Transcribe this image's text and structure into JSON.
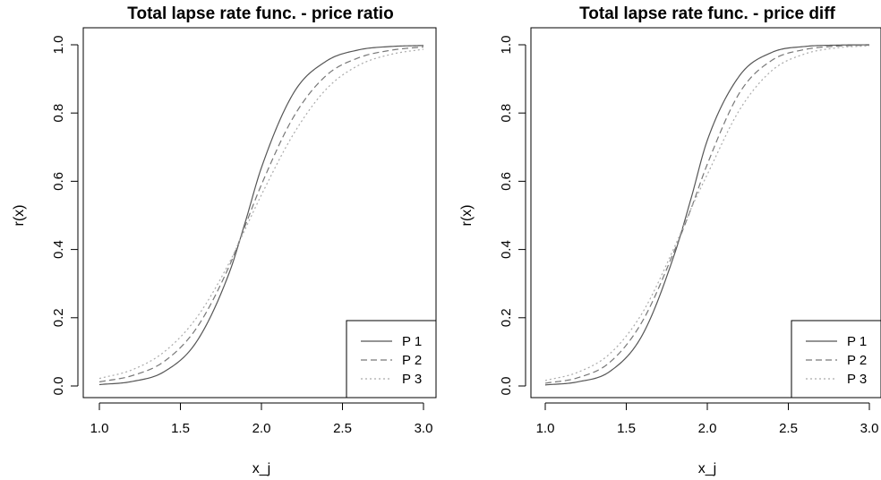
{
  "chart_data": [
    {
      "type": "line",
      "title": "Total lapse rate func. - price ratio",
      "xlabel": "x_j",
      "ylabel": "r(x)",
      "xlim": [
        1.0,
        3.0
      ],
      "ylim": [
        0.0,
        1.0
      ],
      "xticks": [
        "1.0",
        "1.5",
        "2.0",
        "2.5",
        "3.0"
      ],
      "yticks": [
        "0.0",
        "0.2",
        "0.4",
        "0.6",
        "0.8",
        "1.0"
      ],
      "grid": false,
      "legend": {
        "placement": "bottom-right"
      },
      "series": [
        {
          "name": "P 1",
          "style": "solid",
          "color": "#555555",
          "x": [
            1.0,
            1.2,
            1.4,
            1.6,
            1.8,
            1.9,
            2.0,
            2.2,
            2.4,
            2.6,
            2.8,
            3.0
          ],
          "y": [
            0.004,
            0.013,
            0.042,
            0.13,
            0.33,
            0.48,
            0.64,
            0.86,
            0.952,
            0.985,
            0.995,
            0.998
          ]
        },
        {
          "name": "P 2",
          "style": "dashed",
          "color": "#777777",
          "x": [
            1.0,
            1.2,
            1.4,
            1.6,
            1.8,
            1.9,
            2.0,
            2.2,
            2.4,
            2.6,
            2.8,
            3.0
          ],
          "y": [
            0.012,
            0.03,
            0.072,
            0.17,
            0.35,
            0.47,
            0.59,
            0.79,
            0.91,
            0.962,
            0.984,
            0.994
          ]
        },
        {
          "name": "P 3",
          "style": "dotted",
          "color": "#aaaaaa",
          "x": [
            1.0,
            1.2,
            1.4,
            1.6,
            1.8,
            1.9,
            2.0,
            2.2,
            2.4,
            2.6,
            2.8,
            3.0
          ],
          "y": [
            0.022,
            0.047,
            0.1,
            0.2,
            0.36,
            0.46,
            0.56,
            0.74,
            0.87,
            0.94,
            0.972,
            0.987
          ]
        }
      ]
    },
    {
      "type": "line",
      "title": "Total lapse rate func. - price diff",
      "xlabel": "x_j",
      "ylabel": "r(x)",
      "xlim": [
        1.0,
        3.0
      ],
      "ylim": [
        0.0,
        1.0
      ],
      "xticks": [
        "1.0",
        "1.5",
        "2.0",
        "2.5",
        "3.0"
      ],
      "yticks": [
        "0.0",
        "0.2",
        "0.4",
        "0.6",
        "0.8",
        "1.0"
      ],
      "grid": false,
      "legend": {
        "placement": "bottom-right"
      },
      "series": [
        {
          "name": "P 1",
          "style": "solid",
          "color": "#555555",
          "x": [
            1.0,
            1.2,
            1.4,
            1.6,
            1.8,
            1.9,
            2.0,
            2.2,
            2.4,
            2.6,
            2.8,
            3.0
          ],
          "y": [
            0.003,
            0.012,
            0.043,
            0.15,
            0.39,
            0.55,
            0.72,
            0.91,
            0.978,
            0.995,
            0.999,
            1.0
          ]
        },
        {
          "name": "P 2",
          "style": "dashed",
          "color": "#777777",
          "x": [
            1.0,
            1.2,
            1.4,
            1.6,
            1.8,
            1.9,
            2.0,
            2.2,
            2.4,
            2.6,
            2.8,
            3.0
          ],
          "y": [
            0.008,
            0.024,
            0.07,
            0.19,
            0.4,
            0.52,
            0.65,
            0.86,
            0.955,
            0.986,
            0.996,
            0.999
          ]
        },
        {
          "name": "P 3",
          "style": "dotted",
          "color": "#aaaaaa",
          "x": [
            1.0,
            1.2,
            1.4,
            1.6,
            1.8,
            1.9,
            2.0,
            2.2,
            2.4,
            2.6,
            2.8,
            3.0
          ],
          "y": [
            0.016,
            0.04,
            0.095,
            0.215,
            0.41,
            0.52,
            0.62,
            0.81,
            0.925,
            0.973,
            0.991,
            0.997
          ]
        }
      ]
    }
  ]
}
